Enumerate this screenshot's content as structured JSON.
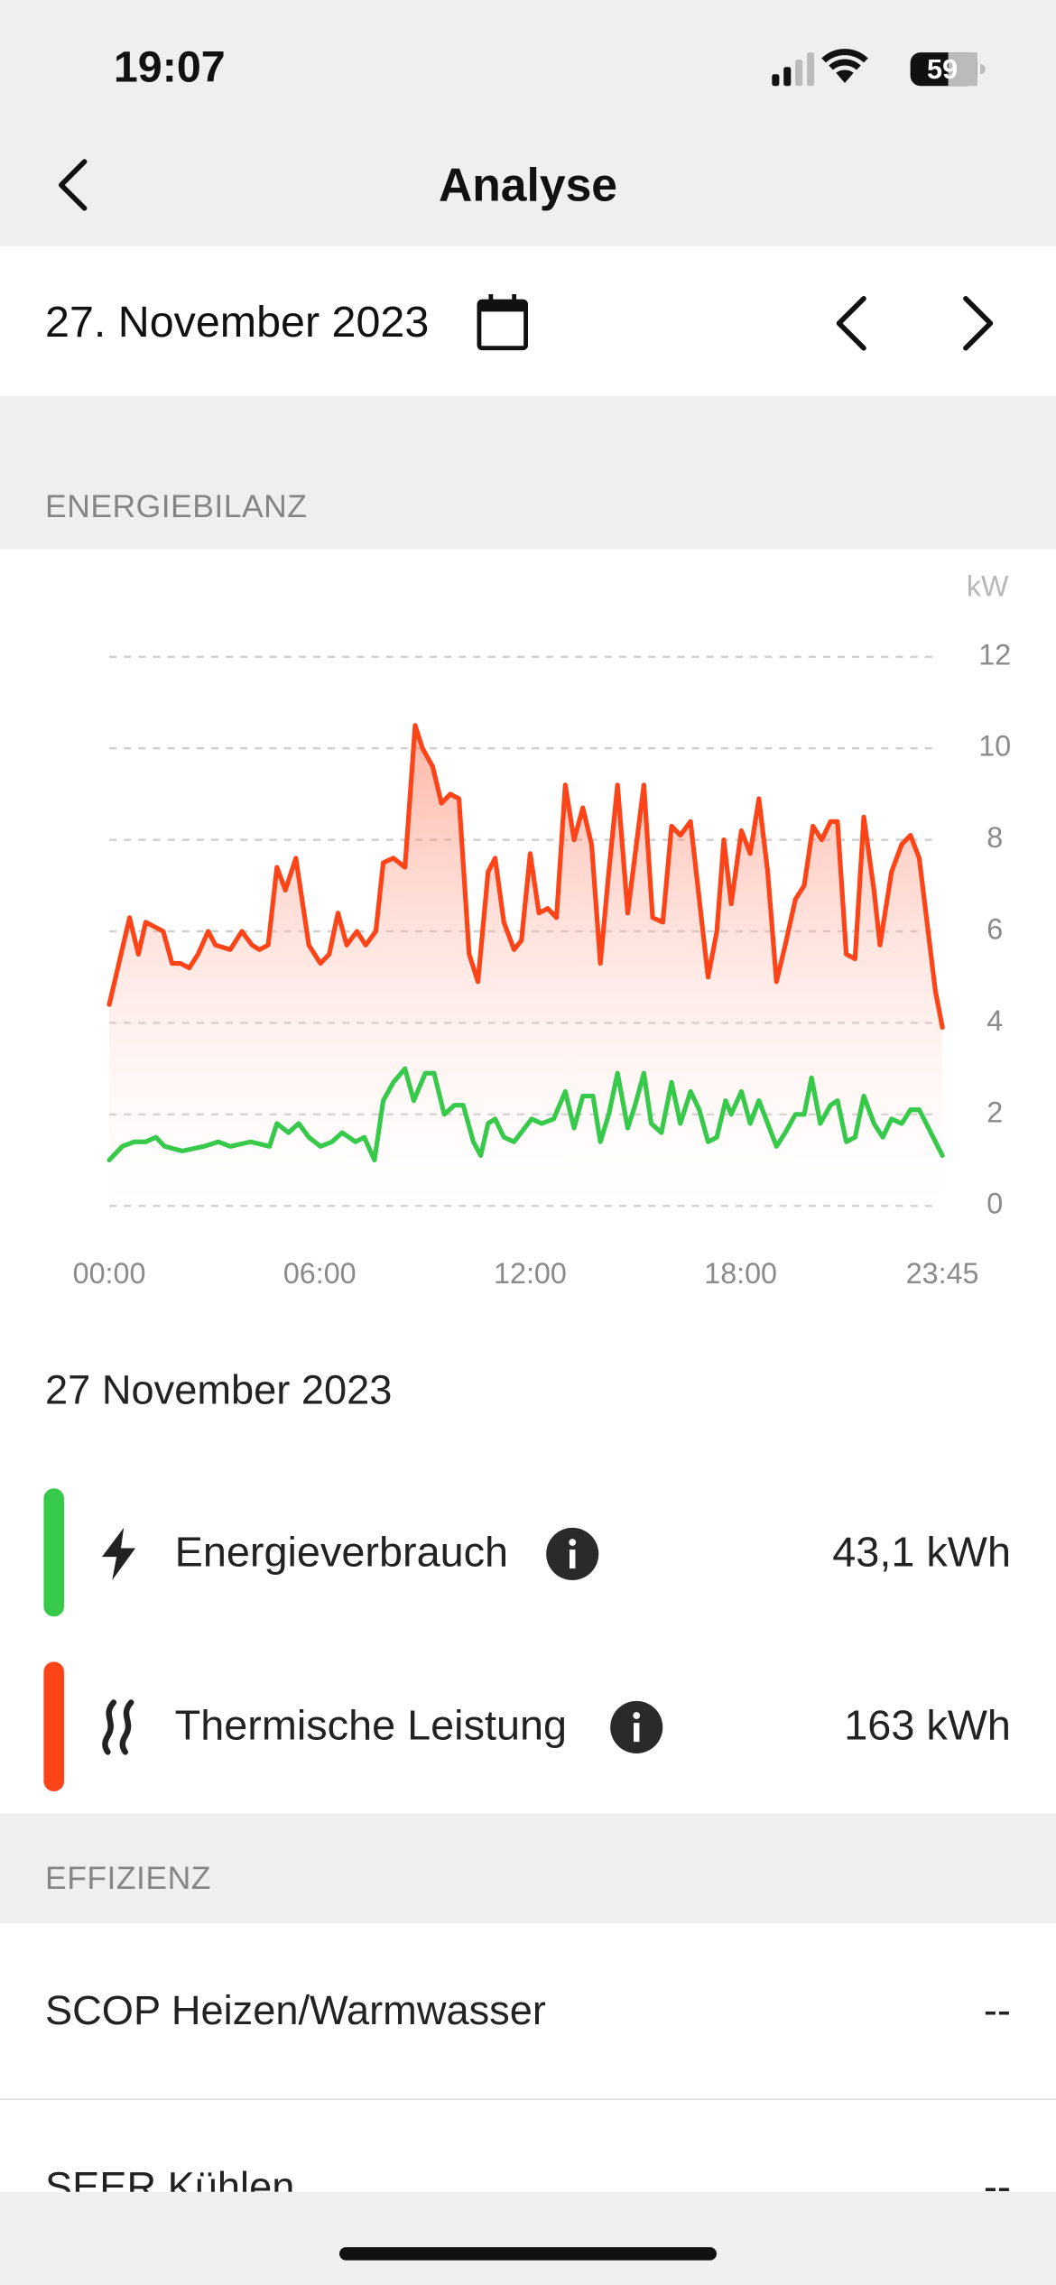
{
  "status_bar": {
    "time": "19:07",
    "battery": "59"
  },
  "nav": {
    "title": "Analyse"
  },
  "date_bar": {
    "date": "27. November 2023"
  },
  "energy": {
    "header": "ENERGIEBILANZ"
  },
  "chart_data": {
    "type": "line",
    "y_unit": "kW",
    "xlim": [
      0,
      23.75
    ],
    "xticks": [
      {
        "value": 0,
        "label": "00:00"
      },
      {
        "value": 6,
        "label": "06:00"
      },
      {
        "value": 12,
        "label": "12:00"
      },
      {
        "value": 18,
        "label": "18:00"
      },
      {
        "value": 23.75,
        "label": "23:45"
      }
    ],
    "ylim": [
      0,
      12
    ],
    "yticks": [
      0,
      2,
      4,
      6,
      8,
      10,
      12
    ],
    "grid": true,
    "series": [
      {
        "name": "Energieverbrauch",
        "color": "#36c94a",
        "area": false,
        "x": [
          0,
          0.37,
          0.71,
          1.04,
          1.33,
          1.58,
          2.08,
          2.7,
          3.11,
          3.45,
          4.03,
          4.57,
          4.78,
          5.11,
          5.4,
          5.69,
          6.02,
          6.35,
          6.64,
          7.02,
          7.27,
          7.56,
          7.81,
          8.1,
          8.43,
          8.68,
          9.01,
          9.26,
          9.55,
          9.84,
          10.09,
          10.38,
          10.59,
          10.8,
          11.0,
          11.25,
          11.54,
          11.84,
          12.04,
          12.33,
          12.67,
          13.0,
          13.25,
          13.5,
          13.79,
          14.0,
          14.24,
          14.49,
          14.78,
          14.99,
          15.24,
          15.45,
          15.74,
          16.03,
          16.28,
          16.57,
          16.82,
          17.07,
          17.32,
          17.57,
          17.73,
          18.02,
          18.27,
          18.52,
          18.77,
          19.02,
          19.27,
          19.56,
          19.81,
          20.02,
          20.27,
          20.56,
          20.76,
          21.01,
          21.26,
          21.51,
          21.8,
          22.05,
          22.3,
          22.59,
          22.84,
          23.09,
          23.42,
          23.75
        ],
        "values": [
          1.0,
          1.3,
          1.4,
          1.4,
          1.5,
          1.3,
          1.2,
          1.3,
          1.4,
          1.3,
          1.4,
          1.3,
          1.8,
          1.6,
          1.8,
          1.5,
          1.3,
          1.4,
          1.6,
          1.4,
          1.5,
          1.0,
          2.3,
          2.7,
          3.0,
          2.3,
          2.9,
          2.9,
          2.0,
          2.2,
          2.2,
          1.4,
          1.1,
          1.8,
          1.9,
          1.5,
          1.4,
          1.7,
          1.9,
          1.8,
          1.9,
          2.5,
          1.7,
          2.4,
          2.4,
          1.4,
          2.0,
          2.9,
          1.7,
          2.2,
          2.9,
          1.8,
          1.6,
          2.7,
          1.8,
          2.5,
          2.1,
          1.4,
          1.5,
          2.3,
          2.0,
          2.5,
          1.8,
          2.3,
          1.8,
          1.3,
          1.6,
          2.0,
          2.0,
          2.8,
          1.8,
          2.2,
          2.3,
          1.4,
          1.5,
          2.4,
          1.8,
          1.5,
          1.9,
          1.8,
          2.1,
          2.1,
          1.6,
          1.1
        ]
      },
      {
        "name": "Thermische Leistung",
        "color": "#fc4418",
        "area": true,
        "x": [
          0,
          0.58,
          0.83,
          1.04,
          1.54,
          1.79,
          2.03,
          2.28,
          2.53,
          2.82,
          3.03,
          3.45,
          3.78,
          4.07,
          4.28,
          4.53,
          4.78,
          5.02,
          5.32,
          5.69,
          6.02,
          6.27,
          6.52,
          6.77,
          7.06,
          7.31,
          7.6,
          7.81,
          8.1,
          8.43,
          8.72,
          8.93,
          9.22,
          9.47,
          9.72,
          9.97,
          10.26,
          10.51,
          10.8,
          11.0,
          11.25,
          11.54,
          11.75,
          12.0,
          12.25,
          12.5,
          12.75,
          13.0,
          13.25,
          13.5,
          13.75,
          14.0,
          14.24,
          14.49,
          14.78,
          15.24,
          15.49,
          15.78,
          16.03,
          16.28,
          16.57,
          17.07,
          17.32,
          17.52,
          17.73,
          18.02,
          18.27,
          18.52,
          18.77,
          19.02,
          19.27,
          19.56,
          19.81,
          20.06,
          20.31,
          20.56,
          20.76,
          21.01,
          21.26,
          21.51,
          21.8,
          21.97,
          22.3,
          22.59,
          22.84,
          23.09,
          23.55,
          23.75
        ],
        "values": [
          4.4,
          6.3,
          5.5,
          6.2,
          6.0,
          5.3,
          5.3,
          5.2,
          5.5,
          6.0,
          5.7,
          5.6,
          6.0,
          5.7,
          5.6,
          5.7,
          7.4,
          6.9,
          7.6,
          5.7,
          5.3,
          5.5,
          6.4,
          5.7,
          6.0,
          5.7,
          6.0,
          7.5,
          7.6,
          7.4,
          10.5,
          10.0,
          9.6,
          8.8,
          9.0,
          8.9,
          5.5,
          4.9,
          7.3,
          7.6,
          6.2,
          5.6,
          5.8,
          7.7,
          6.4,
          6.5,
          6.3,
          9.2,
          8.0,
          8.7,
          7.9,
          5.3,
          7.3,
          9.2,
          6.4,
          9.2,
          6.3,
          6.2,
          8.3,
          8.1,
          8.4,
          5.0,
          6.0,
          8.0,
          6.6,
          8.2,
          7.7,
          8.9,
          7.3,
          4.9,
          5.7,
          6.7,
          7.0,
          8.3,
          8.0,
          8.4,
          8.4,
          5.5,
          5.4,
          8.5,
          6.9,
          5.7,
          7.3,
          7.9,
          8.1,
          7.6,
          4.7,
          3.9
        ]
      }
    ]
  },
  "summary": {
    "date": "27 November 2023",
    "items": [
      {
        "value": "43,1 kWh"
      },
      {
        "value": "163 kWh"
      }
    ]
  },
  "efficiency": {
    "header": "EFFIZIENZ",
    "rows": [
      {
        "label": "SCOP Heizen/Warmwasser",
        "value": "--"
      },
      {
        "label": "SEER Kühlen",
        "value": "--"
      }
    ]
  }
}
